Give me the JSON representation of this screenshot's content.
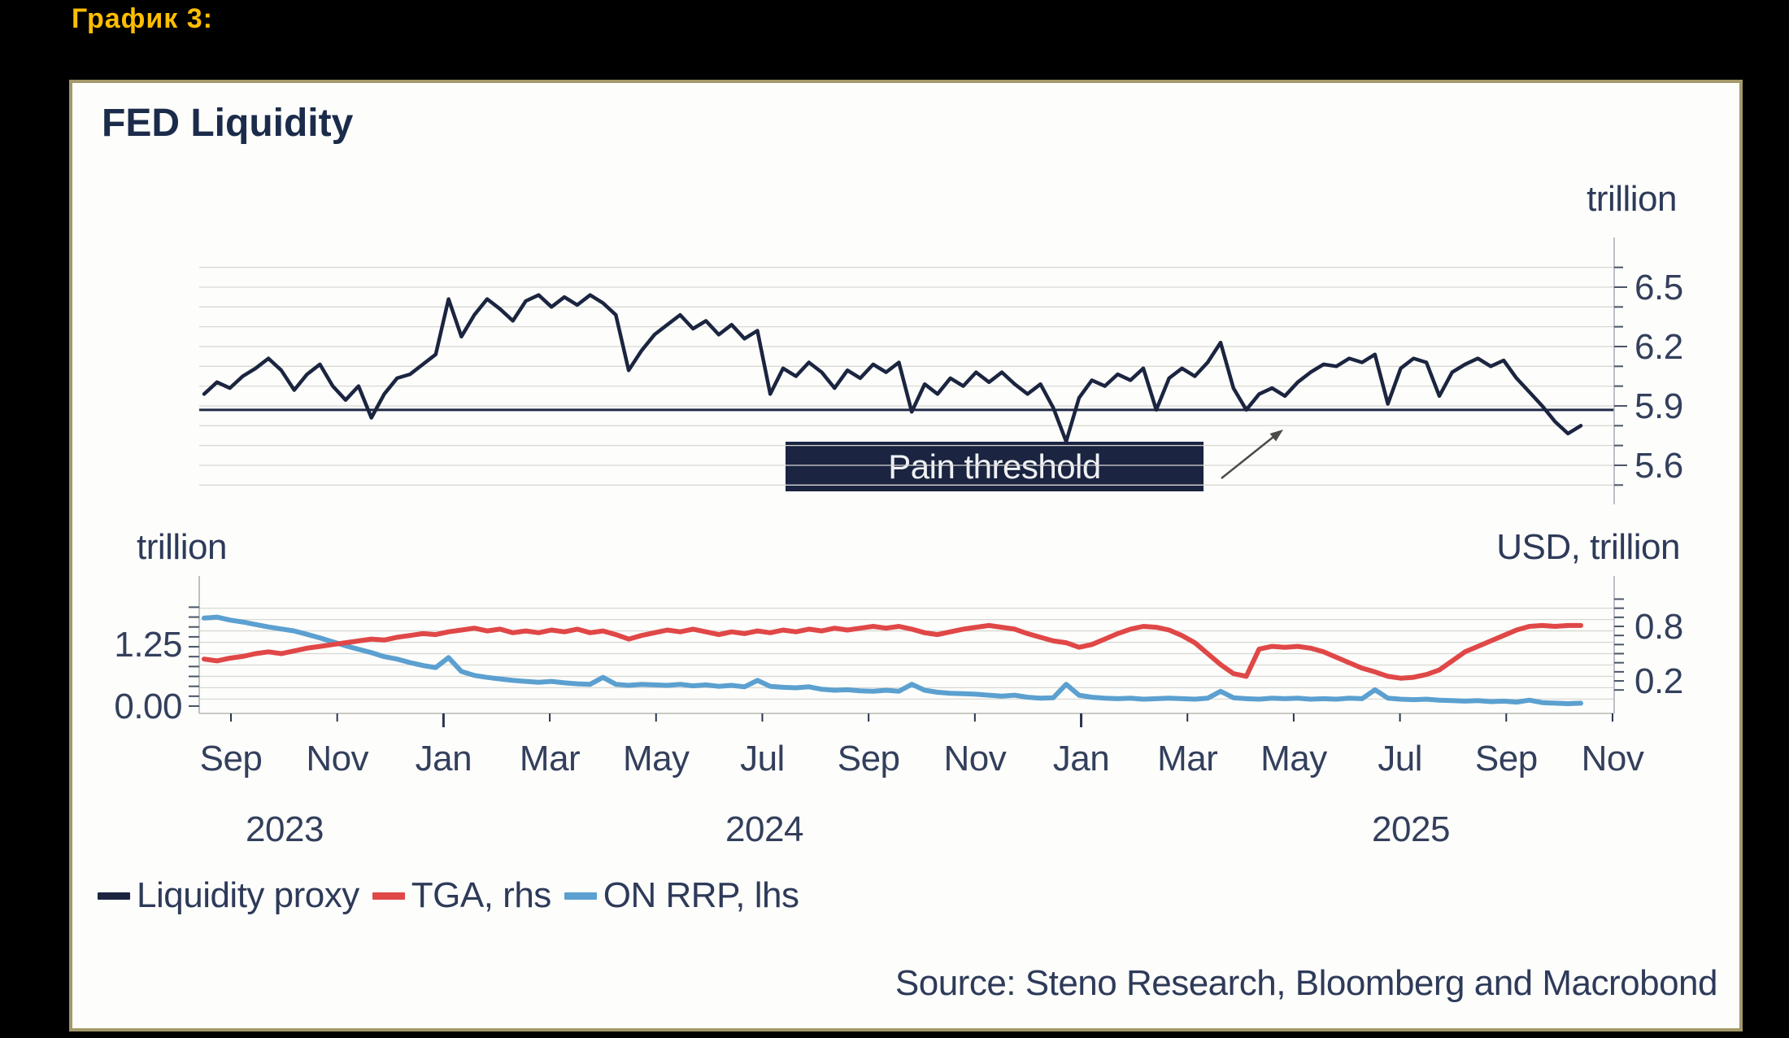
{
  "page": {
    "heading": "График 3:"
  },
  "panel": {
    "title": "FED Liquidity",
    "source": "Source: Steno Research, Bloomberg and Macrobond"
  },
  "legend": [
    {
      "label": "Liquidity proxy",
      "color": "#1b2540"
    },
    {
      "label": "TGA, rhs",
      "color": "#e04747"
    },
    {
      "label": "ON RRP, lhs",
      "color": "#5ba0d0"
    }
  ],
  "chart_data": [
    {
      "type": "line",
      "title": "FED Liquidity — upper panel (Liquidity proxy)",
      "right_axis": {
        "title": "trillion",
        "ticks": [
          {
            "label": "6.5",
            "value": 6.5
          },
          {
            "label": "6.2",
            "value": 6.2
          },
          {
            "label": "5.9",
            "value": 5.9
          },
          {
            "label": "5.6",
            "value": 5.6
          }
        ],
        "range": [
          5.45,
          6.75
        ],
        "minor_tick_step": 0.1,
        "grid": true
      },
      "annotations": [
        {
          "type": "hline-callout",
          "label": "Pain threshold",
          "value": 5.88
        }
      ],
      "x_range": {
        "start": "2023-08",
        "end": "2025-10",
        "sampling": "weekly (4 per month)"
      },
      "series": [
        {
          "name": "Liquidity proxy",
          "axis": "right",
          "color": "#1b2540",
          "unit": "USD trillion",
          "values": [
            5.96,
            6.02,
            5.99,
            6.05,
            6.09,
            6.14,
            6.08,
            5.98,
            6.06,
            6.11,
            6.0,
            5.93,
            6.0,
            5.84,
            5.96,
            6.04,
            6.06,
            6.11,
            6.16,
            6.44,
            6.25,
            6.36,
            6.44,
            6.39,
            6.33,
            6.43,
            6.46,
            6.4,
            6.45,
            6.41,
            6.46,
            6.42,
            6.36,
            6.08,
            6.18,
            6.26,
            6.31,
            6.36,
            6.29,
            6.33,
            6.26,
            6.31,
            6.24,
            6.28,
            5.96,
            6.09,
            6.05,
            6.12,
            6.07,
            5.99,
            6.08,
            6.04,
            6.11,
            6.07,
            6.12,
            5.87,
            6.01,
            5.96,
            6.04,
            6.0,
            6.07,
            6.02,
            6.07,
            6.01,
            5.96,
            6.01,
            5.89,
            5.72,
            5.94,
            6.03,
            6.0,
            6.06,
            6.03,
            6.09,
            5.88,
            6.04,
            6.09,
            6.05,
            6.12,
            6.22,
            5.99,
            5.88,
            5.96,
            5.99,
            5.95,
            6.02,
            6.07,
            6.11,
            6.1,
            6.14,
            6.12,
            6.16,
            5.91,
            6.09,
            6.14,
            6.12,
            5.95,
            6.07,
            6.11,
            6.14,
            6.1,
            6.13,
            6.04,
            5.97,
            5.9,
            5.82,
            5.76,
            5.8
          ]
        }
      ]
    },
    {
      "type": "line",
      "title": "FED Liquidity — lower panel (TGA and ON RRP)",
      "left_axis": {
        "title": "trillion",
        "ticks": [
          {
            "label": "1.25",
            "value": 1.25
          },
          {
            "label": "0.00",
            "value": 0.0
          }
        ],
        "range": [
          -0.15,
          2.6
        ],
        "minor_tick_step": 0.2
      },
      "right_axis": {
        "title": "USD, trillion",
        "ticks": [
          {
            "label": "0.8",
            "value": 0.8
          },
          {
            "label": "0.2",
            "value": 0.2
          }
        ],
        "range": [
          -0.16,
          1.35
        ],
        "minor_tick_step": 0.1,
        "grid_step": 0.125
      },
      "x_axis": {
        "months": [
          "Sep",
          "Nov",
          "Jan",
          "Mar",
          "May",
          "Jul",
          "Sep",
          "Nov",
          "Jan",
          "Mar",
          "May",
          "Jul",
          "Sep",
          "Nov"
        ],
        "years": [
          "2023",
          "2024",
          "2025"
        ]
      },
      "x_range": {
        "start": "2023-08",
        "end": "2025-10",
        "sampling": "weekly (4 per month)"
      },
      "series": [
        {
          "name": "ON RRP, lhs",
          "axis": "left",
          "color": "#5ba0d0",
          "unit": "USD trillion",
          "values": [
            1.78,
            1.8,
            1.74,
            1.7,
            1.65,
            1.6,
            1.56,
            1.52,
            1.45,
            1.38,
            1.3,
            1.22,
            1.15,
            1.08,
            1.0,
            0.95,
            0.88,
            0.82,
            0.78,
            0.98,
            0.7,
            0.62,
            0.58,
            0.55,
            0.52,
            0.5,
            0.48,
            0.5,
            0.47,
            0.45,
            0.44,
            0.58,
            0.44,
            0.42,
            0.44,
            0.43,
            0.42,
            0.44,
            0.41,
            0.43,
            0.4,
            0.42,
            0.39,
            0.52,
            0.4,
            0.38,
            0.37,
            0.39,
            0.34,
            0.32,
            0.33,
            0.31,
            0.3,
            0.32,
            0.3,
            0.44,
            0.32,
            0.28,
            0.26,
            0.25,
            0.24,
            0.22,
            0.2,
            0.22,
            0.18,
            0.16,
            0.17,
            0.44,
            0.22,
            0.18,
            0.16,
            0.15,
            0.16,
            0.14,
            0.15,
            0.16,
            0.15,
            0.14,
            0.16,
            0.3,
            0.17,
            0.15,
            0.14,
            0.16,
            0.15,
            0.16,
            0.14,
            0.15,
            0.14,
            0.16,
            0.15,
            0.33,
            0.16,
            0.14,
            0.13,
            0.14,
            0.12,
            0.11,
            0.1,
            0.11,
            0.09,
            0.1,
            0.08,
            0.12,
            0.07,
            0.06,
            0.05,
            0.06
          ]
        },
        {
          "name": "TGA, rhs",
          "axis": "right",
          "color": "#e04747",
          "unit": "USD trillion",
          "values": [
            0.44,
            0.42,
            0.45,
            0.47,
            0.5,
            0.52,
            0.5,
            0.53,
            0.56,
            0.58,
            0.6,
            0.62,
            0.64,
            0.66,
            0.65,
            0.68,
            0.7,
            0.72,
            0.71,
            0.74,
            0.76,
            0.78,
            0.75,
            0.77,
            0.73,
            0.75,
            0.73,
            0.76,
            0.74,
            0.77,
            0.73,
            0.75,
            0.71,
            0.66,
            0.7,
            0.73,
            0.76,
            0.74,
            0.77,
            0.74,
            0.71,
            0.74,
            0.72,
            0.75,
            0.73,
            0.76,
            0.74,
            0.77,
            0.75,
            0.78,
            0.76,
            0.78,
            0.8,
            0.78,
            0.8,
            0.77,
            0.73,
            0.71,
            0.74,
            0.77,
            0.79,
            0.81,
            0.79,
            0.77,
            0.72,
            0.68,
            0.64,
            0.62,
            0.57,
            0.6,
            0.66,
            0.72,
            0.77,
            0.8,
            0.79,
            0.76,
            0.7,
            0.62,
            0.5,
            0.38,
            0.28,
            0.25,
            0.55,
            0.58,
            0.57,
            0.58,
            0.56,
            0.52,
            0.46,
            0.4,
            0.34,
            0.3,
            0.25,
            0.23,
            0.24,
            0.27,
            0.32,
            0.42,
            0.52,
            0.58,
            0.64,
            0.7,
            0.76,
            0.8,
            0.81,
            0.8,
            0.81,
            0.81
          ]
        }
      ]
    }
  ]
}
